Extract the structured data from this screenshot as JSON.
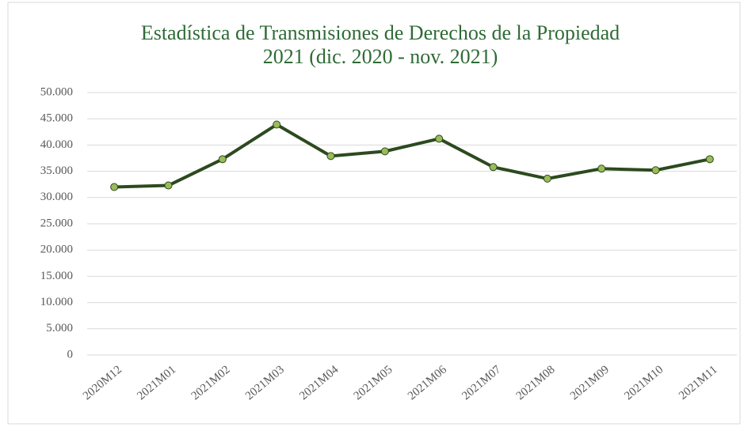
{
  "chart_data": {
    "type": "line",
    "title": [
      "Estadística de Transmisiones de Derechos de la Propiedad",
      "2021 (dic. 2020 - nov. 2021)"
    ],
    "categories": [
      "2020M12",
      "2021M01",
      "2021M02",
      "2021M03",
      "2021M04",
      "2021M05",
      "2021M06",
      "2021M07",
      "2021M08",
      "2021M09",
      "2021M10",
      "2021M11"
    ],
    "series": [
      {
        "color": "#2c4a1e",
        "marker_color": "#9bbb59",
        "values": [
          32000,
          32300,
          37300,
          43900,
          37900,
          38800,
          41200,
          35800,
          33600,
          35500,
          35200,
          37300
        ]
      }
    ],
    "ylim": [
      0,
      50000
    ],
    "yticks": [
      0,
      {
        "value": 5000,
        "label": "5.000"
      },
      {
        "value": 10000,
        "label": "10.000"
      },
      {
        "value": 15000,
        "label": "15.000"
      },
      {
        "value": 20000,
        "label": "20.000"
      },
      {
        "value": 25000,
        "label": "25.000"
      },
      {
        "value": 30000,
        "label": "30.000"
      },
      {
        "value": 35000,
        "label": "35.000"
      },
      {
        "value": 40000,
        "label": "40.000"
      },
      {
        "value": 45000,
        "label": "45.000"
      },
      {
        "value": 50000,
        "label": "50.000"
      }
    ],
    "grid": true
  }
}
